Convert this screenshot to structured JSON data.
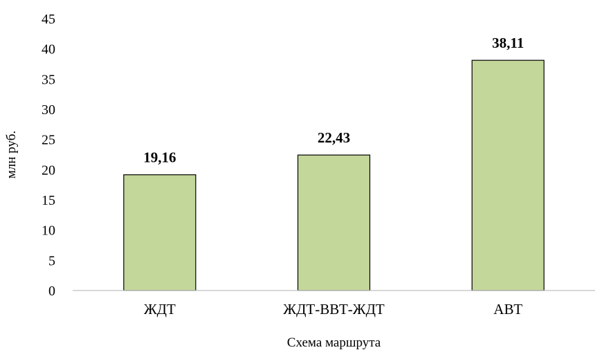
{
  "chart_data": {
    "type": "bar",
    "categories": [
      "ЖДТ",
      "ЖДТ-ВВТ-ЖДТ",
      "АВТ"
    ],
    "values": [
      19.16,
      22.43,
      38.11
    ],
    "data_labels": [
      "19,16",
      "22,43",
      "38,11"
    ],
    "title": "",
    "xlabel": "Схема маршрута",
    "ylabel": "млн руб.",
    "ylim": [
      0,
      45
    ],
    "yticks": [
      0,
      5,
      10,
      15,
      20,
      25,
      30,
      35,
      40,
      45
    ],
    "grid": false,
    "legend": "none",
    "bar_color": "#c4d79b",
    "bar_edge_color": "#000000"
  }
}
